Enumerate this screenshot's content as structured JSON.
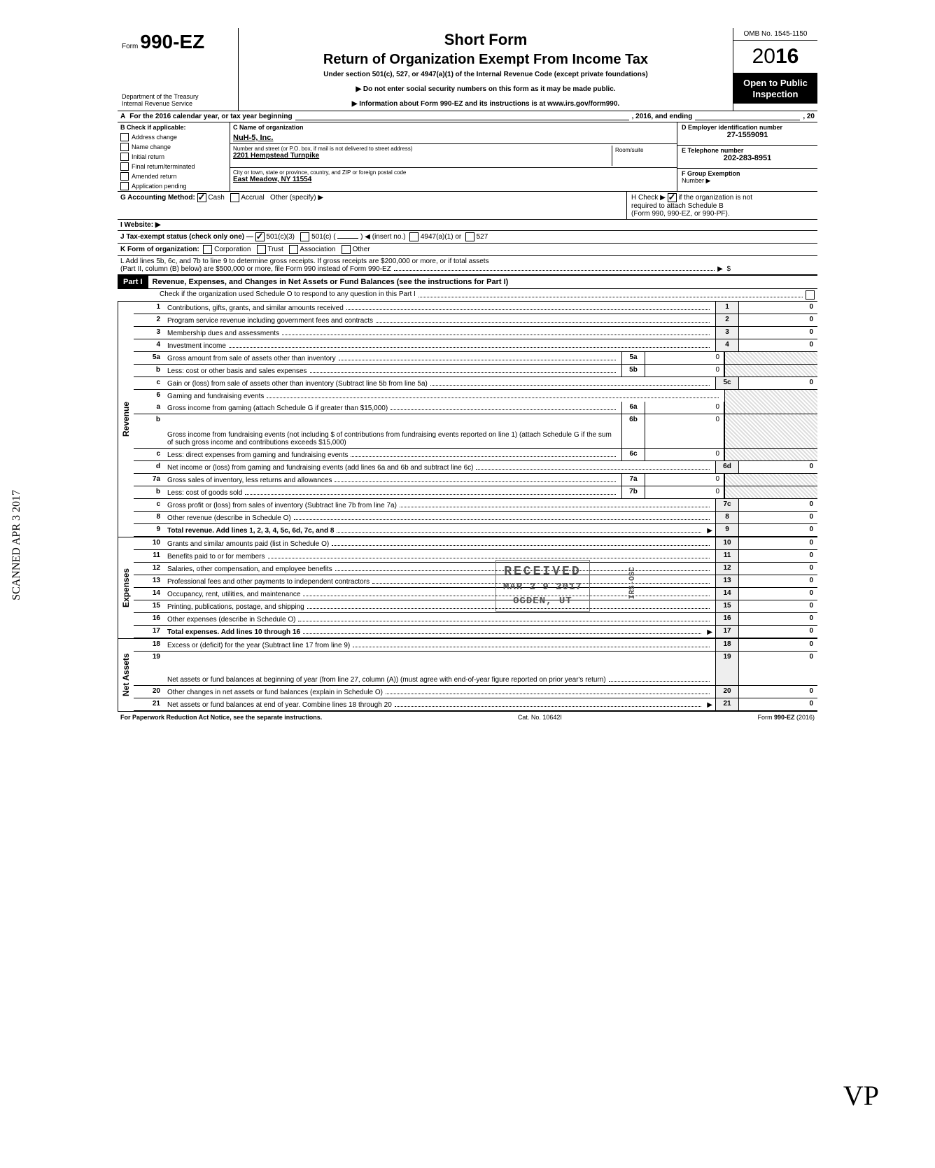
{
  "header": {
    "form_label": "Form",
    "form_no": "990-EZ",
    "dept1": "Department of the Treasury",
    "dept2": "Internal Revenue Service",
    "short_form": "Short Form",
    "title": "Return of Organization Exempt From Income Tax",
    "subtitle": "Under section 501(c), 527, or 4947(a)(1) of the Internal Revenue Code (except private foundations)",
    "arrow1": "▶ Do not enter social security numbers on this form as it may be made public.",
    "arrow2": "▶ Information about Form 990-EZ and its instructions is at www.irs.gov/form990.",
    "omb": "OMB No. 1545-1150",
    "year_prefix": "20",
    "year_bold": "16",
    "open1": "Open to Public",
    "open2": "Inspection"
  },
  "row_a": {
    "label_a": "A",
    "text1": "For the 2016 calendar year, or tax year beginning",
    "text2": ", 2016, and ending",
    "text3": ", 20"
  },
  "col_b": {
    "head": "B  Check if applicable:",
    "items": [
      "Address change",
      "Name change",
      "Initial return",
      "Final return/terminated",
      "Amended return",
      "Application pending"
    ]
  },
  "col_c": {
    "name_label": "C  Name of organization",
    "name_value": "NuH-5, Inc.",
    "street_label": "Number and street (or P.O. box, if mail is not delivered to street address)",
    "street_value": "2201 Hempstead Turnpike",
    "room_label": "Room/suite",
    "city_label": "City or town, state or province, country, and ZIP or foreign postal code",
    "city_value": "East Meadow, NY 11554"
  },
  "col_def": {
    "d_label": "D  Employer identification number",
    "d_value": "27-1559091",
    "e_label": "E  Telephone number",
    "e_value": "202-283-8951",
    "f_label": "F  Group Exemption",
    "f_label2": "Number ▶"
  },
  "row_g": {
    "label": "G  Accounting Method:",
    "cash": "Cash",
    "accrual": "Accrual",
    "other": "Other (specify) ▶"
  },
  "row_h": {
    "text1": "H  Check ▶",
    "text2": "if the organization is not",
    "text3": "required to attach Schedule B",
    "text4": "(Form 990, 990-EZ, or 990-PF)."
  },
  "row_i": {
    "label": "I   Website: ▶"
  },
  "row_j": {
    "label": "J  Tax-exempt status (check only one) —",
    "opt1": "501(c)(3)",
    "opt2": "501(c) (",
    "insert": ") ◀ (insert no.)",
    "opt3": "4947(a)(1) or",
    "opt4": "527"
  },
  "row_k": {
    "label": "K  Form of organization:",
    "opts": [
      "Corporation",
      "Trust",
      "Association",
      "Other"
    ]
  },
  "row_l": {
    "line1": "L  Add lines 5b, 6c, and 7b to line 9 to determine gross receipts. If gross receipts are $200,000 or more, or if total assets",
    "line2": "(Part II, column (B) below) are $500,000 or more, file Form 990 instead of Form 990-EZ",
    "arrow": "▶",
    "dollar": "$"
  },
  "part1": {
    "label": "Part I",
    "title": "Revenue, Expenses, and Changes in Net Assets or Fund Balances (see the instructions for Part I)",
    "check_o": "Check if the organization used Schedule O to respond to any question in this Part I"
  },
  "lines": [
    {
      "no": "1",
      "desc": "Contributions, gifts, grants, and similar amounts received",
      "rt": "1",
      "val": "0"
    },
    {
      "no": "2",
      "desc": "Program service revenue including government fees and contracts",
      "rt": "2",
      "val": "0"
    },
    {
      "no": "3",
      "desc": "Membership dues and assessments",
      "rt": "3",
      "val": "0"
    },
    {
      "no": "4",
      "desc": "Investment income",
      "rt": "4",
      "val": "0"
    },
    {
      "no": "5a",
      "desc": "Gross amount from sale of assets other than inventory",
      "mid": "5a",
      "midval": "0",
      "shade_rt": true
    },
    {
      "no": "b",
      "desc": "Less: cost or other basis and sales expenses",
      "mid": "5b",
      "midval": "0",
      "shade_rt": true
    },
    {
      "no": "c",
      "desc": "Gain or (loss) from sale of assets other than inventory (Subtract line 5b from line 5a)",
      "rt": "5c",
      "val": "0"
    },
    {
      "no": "6",
      "desc": "Gaming and fundraising events",
      "shade_rt": true,
      "noborder": true
    },
    {
      "no": "a",
      "desc": "Gross income from gaming (attach Schedule G if greater than $15,000)",
      "mid": "6a",
      "midval": "0",
      "shade_rt": true
    },
    {
      "no": "b",
      "desc": "Gross income from fundraising events (not including  $                    of contributions from fundraising events reported on line 1) (attach Schedule G if the sum of such gross income and contributions exceeds $15,000)",
      "mid": "6b",
      "midval": "0",
      "shade_rt": true,
      "tall": true
    },
    {
      "no": "c",
      "desc": "Less: direct expenses from gaming and fundraising events",
      "mid": "6c",
      "midval": "0",
      "shade_rt": true
    },
    {
      "no": "d",
      "desc": "Net income or (loss) from gaming and fundraising events (add lines 6a and 6b and subtract line 6c)",
      "rt": "6d",
      "val": "0"
    },
    {
      "no": "7a",
      "desc": "Gross sales of inventory, less returns and allowances",
      "mid": "7a",
      "midval": "0",
      "shade_rt": true
    },
    {
      "no": "b",
      "desc": "Less: cost of goods sold",
      "mid": "7b",
      "midval": "0",
      "shade_rt": true
    },
    {
      "no": "c",
      "desc": "Gross profit or (loss) from sales of inventory (Subtract line 7b from line 7a)",
      "rt": "7c",
      "val": "0"
    },
    {
      "no": "8",
      "desc": "Other revenue (describe in Schedule O)",
      "rt": "8",
      "val": "0"
    },
    {
      "no": "9",
      "desc": "Total revenue. Add lines 1, 2, 3, 4, 5c, 6d, 7c, and 8",
      "rt": "9",
      "val": "0",
      "bold": true,
      "arrow": true
    }
  ],
  "exp_lines": [
    {
      "no": "10",
      "desc": "Grants and similar amounts paid (list in Schedule O)",
      "rt": "10",
      "val": "0"
    },
    {
      "no": "11",
      "desc": "Benefits paid to or for members",
      "rt": "11",
      "val": "0"
    },
    {
      "no": "12",
      "desc": "Salaries, other compensation, and employee benefits",
      "rt": "12",
      "val": "0"
    },
    {
      "no": "13",
      "desc": "Professional fees and other payments to independent contractors",
      "rt": "13",
      "val": "0"
    },
    {
      "no": "14",
      "desc": "Occupancy, rent, utilities, and maintenance",
      "rt": "14",
      "val": "0"
    },
    {
      "no": "15",
      "desc": "Printing, publications, postage, and shipping",
      "rt": "15",
      "val": "0"
    },
    {
      "no": "16",
      "desc": "Other expenses (describe in Schedule O)",
      "rt": "16",
      "val": "0"
    },
    {
      "no": "17",
      "desc": "Total expenses. Add lines 10 through 16",
      "rt": "17",
      "val": "0",
      "bold": true,
      "arrow": true
    }
  ],
  "na_lines": [
    {
      "no": "18",
      "desc": "Excess or (deficit) for the year (Subtract line 17 from line 9)",
      "rt": "18",
      "val": "0"
    },
    {
      "no": "19",
      "desc": "Net assets or fund balances at beginning of year (from line 27, column (A)) (must agree with end-of-year figure reported on prior year's return)",
      "rt": "19",
      "val": "0",
      "tall": true
    },
    {
      "no": "20",
      "desc": "Other changes in net assets or fund balances (explain in Schedule O)",
      "rt": "20",
      "val": "0"
    },
    {
      "no": "21",
      "desc": "Net assets or fund balances at end of year. Combine lines 18 through 20",
      "rt": "21",
      "val": "0",
      "arrow": true
    }
  ],
  "vlabels": {
    "revenue": "Revenue",
    "expenses": "Expenses",
    "netassets": "Net Assets"
  },
  "footer": {
    "left": "For Paperwork Reduction Act Notice, see the separate instructions.",
    "center": "Cat. No. 10642I",
    "right": "Form 990-EZ (2016)"
  },
  "stamp": {
    "received": "RECEIVED",
    "date": "MAR 2 9 2017",
    "loc": "OGDEN, UT",
    "side": "IRS-OSC"
  },
  "side_scan": "SCANNED  APR 3 2017",
  "initials": "VP"
}
